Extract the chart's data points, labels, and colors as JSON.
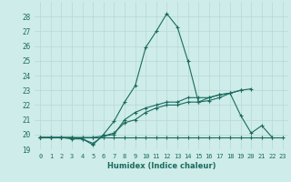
{
  "xlabel": "Humidex (Indice chaleur)",
  "background_color": "#ceecea",
  "grid_color": "#b8d8d4",
  "line_color": "#1a6b5e",
  "xlim": [
    -0.5,
    23.5
  ],
  "ylim": [
    19.0,
    29.0
  ],
  "yticks": [
    19,
    20,
    21,
    22,
    23,
    24,
    25,
    26,
    27,
    28
  ],
  "xticks": [
    0,
    1,
    2,
    3,
    4,
    5,
    6,
    7,
    8,
    9,
    10,
    11,
    12,
    13,
    14,
    15,
    16,
    17,
    18,
    19,
    20,
    21,
    22,
    23
  ],
  "series": [
    {
      "x": [
        0,
        1,
        2,
        3,
        4,
        5,
        6,
        7,
        8,
        9,
        10,
        11,
        12,
        13,
        14,
        15,
        16,
        17,
        18,
        19,
        20,
        21,
        22,
        23
      ],
      "y": [
        19.8,
        19.8,
        19.8,
        19.8,
        19.8,
        19.8,
        19.8,
        19.8,
        19.8,
        19.8,
        19.8,
        19.8,
        19.8,
        19.8,
        19.8,
        19.8,
        19.8,
        19.8,
        19.8,
        19.8,
        19.8,
        19.8,
        19.8,
        19.8
      ]
    },
    {
      "x": [
        0,
        1,
        2,
        3,
        4,
        5,
        6,
        7,
        8,
        9,
        10,
        11,
        12,
        13,
        14,
        15,
        16,
        17,
        18,
        19,
        20,
        21,
        22
      ],
      "y": [
        19.8,
        19.8,
        19.8,
        19.7,
        19.7,
        19.4,
        19.9,
        20.1,
        20.8,
        21.0,
        21.5,
        21.8,
        22.0,
        22.0,
        22.2,
        22.2,
        22.5,
        22.7,
        22.8,
        21.3,
        20.1,
        20.6,
        19.8
      ]
    },
    {
      "x": [
        0,
        1,
        2,
        3,
        4,
        5,
        6,
        7,
        8,
        9,
        10,
        11,
        12,
        13,
        14,
        15,
        16,
        17,
        18,
        19
      ],
      "y": [
        19.8,
        19.8,
        19.8,
        19.8,
        19.7,
        19.3,
        20.0,
        20.9,
        22.2,
        23.3,
        25.9,
        27.0,
        28.2,
        27.3,
        25.0,
        22.2,
        22.3,
        22.5,
        22.8,
        23.0
      ]
    },
    {
      "x": [
        0,
        1,
        2,
        3,
        4,
        5,
        6,
        7,
        8,
        9,
        10,
        11,
        12,
        13,
        14,
        15,
        16,
        17,
        18,
        19,
        20
      ],
      "y": [
        19.8,
        19.8,
        19.8,
        19.8,
        19.8,
        19.8,
        19.9,
        20.0,
        21.0,
        21.5,
        21.8,
        22.0,
        22.2,
        22.2,
        22.5,
        22.5,
        22.5,
        22.7,
        22.8,
        23.0,
        23.1
      ]
    }
  ]
}
